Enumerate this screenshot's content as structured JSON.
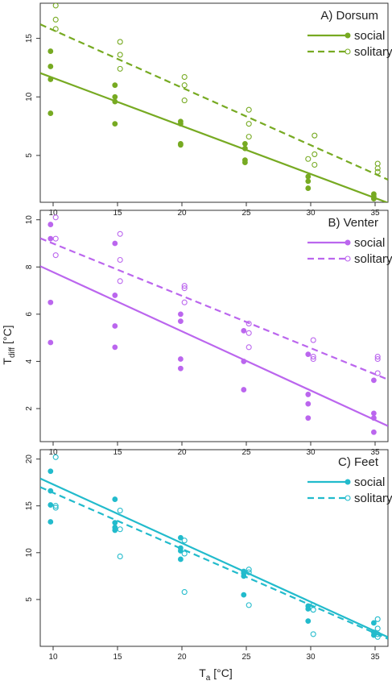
{
  "figure": {
    "xlabel": {
      "main": "T",
      "sub": "a",
      "unit": " [°C]"
    },
    "ylabel": {
      "main": "T",
      "sub": "diff",
      "unit": " [°C]"
    }
  },
  "chart_data": [
    {
      "type": "scatter",
      "title": "A) Dorsum",
      "xlim": [
        9,
        36
      ],
      "ylim": [
        1,
        18
      ],
      "x_ticks": [
        10,
        15,
        20,
        25,
        30,
        35
      ],
      "y_ticks": [
        5,
        10,
        15
      ],
      "color": "#77aa22",
      "legend_position": "top-right",
      "series": [
        {
          "name": "social",
          "marker": "filled",
          "line": "solid",
          "fit": {
            "intercept": 15.73,
            "slope": -0.4105
          },
          "points": [
            [
              9.8,
              13.9
            ],
            [
              9.8,
              12.6
            ],
            [
              9.8,
              11.5
            ],
            [
              9.8,
              8.6
            ],
            [
              14.8,
              11.0
            ],
            [
              14.8,
              10.0
            ],
            [
              14.8,
              9.6
            ],
            [
              14.8,
              7.7
            ],
            [
              19.9,
              7.9
            ],
            [
              19.9,
              7.7
            ],
            [
              19.9,
              6.0
            ],
            [
              19.9,
              5.9
            ],
            [
              24.9,
              6.0
            ],
            [
              24.9,
              5.6
            ],
            [
              24.9,
              4.6
            ],
            [
              24.9,
              4.4
            ],
            [
              29.8,
              3.2
            ],
            [
              29.8,
              2.8
            ],
            [
              29.8,
              2.2
            ],
            [
              34.9,
              1.7
            ],
            [
              34.9,
              1.5
            ],
            [
              34.9,
              1.3
            ]
          ]
        },
        {
          "name": "solitary",
          "marker": "open",
          "line": "dashed",
          "fit": {
            "intercept": 20.62,
            "slope": -0.4914
          },
          "points": [
            [
              10.2,
              17.8
            ],
            [
              10.2,
              16.6
            ],
            [
              10.2,
              15.8
            ],
            [
              15.2,
              14.7
            ],
            [
              15.2,
              13.6
            ],
            [
              15.2,
              12.4
            ],
            [
              20.2,
              11.7
            ],
            [
              20.2,
              11.0
            ],
            [
              20.2,
              9.7
            ],
            [
              25.2,
              8.9
            ],
            [
              25.2,
              7.7
            ],
            [
              25.2,
              6.6
            ],
            [
              29.8,
              4.7
            ],
            [
              30.3,
              6.7
            ],
            [
              30.3,
              5.1
            ],
            [
              30.3,
              4.2
            ],
            [
              35.2,
              4.3
            ],
            [
              35.2,
              3.9
            ],
            [
              35.2,
              3.6
            ]
          ]
        }
      ]
    },
    {
      "type": "scatter",
      "title": "B) Venter",
      "xlim": [
        9,
        36
      ],
      "ylim": [
        0.6,
        10.4
      ],
      "x_ticks": [
        10,
        15,
        20,
        25,
        30,
        35
      ],
      "y_ticks": [
        2,
        4,
        6,
        8,
        10
      ],
      "color": "#bb66ee",
      "legend_position": "top-right",
      "series": [
        {
          "name": "social",
          "marker": "filled",
          "line": "solid",
          "fit": {
            "intercept": 10.29,
            "slope": -0.2508
          },
          "points": [
            [
              9.8,
              9.8
            ],
            [
              9.8,
              9.2
            ],
            [
              9.8,
              6.5
            ],
            [
              9.8,
              4.8
            ],
            [
              14.8,
              9.0
            ],
            [
              14.8,
              6.8
            ],
            [
              14.8,
              5.5
            ],
            [
              14.8,
              4.6
            ],
            [
              19.9,
              6.0
            ],
            [
              19.9,
              5.7
            ],
            [
              19.9,
              4.1
            ],
            [
              19.9,
              3.7
            ],
            [
              24.8,
              5.3
            ],
            [
              24.8,
              4.0
            ],
            [
              24.8,
              2.8
            ],
            [
              29.8,
              4.3
            ],
            [
              29.8,
              2.6
            ],
            [
              29.8,
              2.2
            ],
            [
              29.8,
              1.6
            ],
            [
              34.9,
              3.2
            ],
            [
              34.9,
              1.8
            ],
            [
              34.9,
              1.6
            ],
            [
              34.9,
              1.0
            ]
          ]
        },
        {
          "name": "solitary",
          "marker": "open",
          "line": "dashed",
          "fit": {
            "intercept": 11.21,
            "slope": -0.2216
          },
          "points": [
            [
              10.2,
              10.1
            ],
            [
              10.2,
              9.2
            ],
            [
              10.2,
              8.5
            ],
            [
              15.2,
              9.4
            ],
            [
              15.2,
              8.3
            ],
            [
              15.2,
              7.4
            ],
            [
              20.2,
              7.2
            ],
            [
              20.2,
              7.1
            ],
            [
              20.2,
              6.5
            ],
            [
              25.2,
              5.6
            ],
            [
              25.2,
              5.2
            ],
            [
              25.2,
              4.6
            ],
            [
              30.2,
              4.9
            ],
            [
              30.2,
              4.2
            ],
            [
              30.2,
              4.1
            ],
            [
              35.2,
              4.2
            ],
            [
              35.2,
              4.1
            ],
            [
              35.2,
              3.5
            ]
          ]
        }
      ]
    },
    {
      "type": "scatter",
      "title": "C) Feet",
      "xlim": [
        9,
        36
      ],
      "ylim": [
        0,
        21
      ],
      "x_ticks": [
        10,
        15,
        20,
        25,
        30,
        35
      ],
      "y_ticks": [
        5,
        10,
        15,
        20
      ],
      "color": "#22bbcc",
      "legend_position": "top-right",
      "series": [
        {
          "name": "social",
          "marker": "filled",
          "line": "solid",
          "fit": {
            "intercept": 23.57,
            "slope": -0.6274
          },
          "points": [
            [
              9.8,
              18.7
            ],
            [
              9.8,
              16.6
            ],
            [
              9.8,
              15.1
            ],
            [
              9.8,
              13.3
            ],
            [
              14.8,
              15.7
            ],
            [
              14.8,
              13.2
            ],
            [
              14.8,
              12.7
            ],
            [
              14.8,
              12.4
            ],
            [
              19.9,
              11.6
            ],
            [
              19.9,
              10.5
            ],
            [
              19.9,
              10.2
            ],
            [
              19.9,
              9.3
            ],
            [
              24.8,
              8.0
            ],
            [
              24.8,
              7.8
            ],
            [
              24.8,
              7.5
            ],
            [
              24.8,
              5.5
            ],
            [
              29.8,
              4.3
            ],
            [
              29.8,
              4.0
            ],
            [
              29.8,
              2.7
            ],
            [
              34.9,
              2.5
            ],
            [
              34.9,
              1.5
            ],
            [
              34.9,
              1.2
            ]
          ]
        },
        {
          "name": "solitary",
          "marker": "open",
          "line": "dashed",
          "fit": {
            "intercept": 22.4,
            "slope": -0.6
          },
          "points": [
            [
              10.2,
              20.2
            ],
            [
              10.2,
              15.0
            ],
            [
              10.2,
              14.8
            ],
            [
              15.2,
              14.5
            ],
            [
              15.2,
              12.5
            ],
            [
              15.2,
              9.6
            ],
            [
              20.2,
              11.3
            ],
            [
              20.2,
              9.9
            ],
            [
              20.2,
              5.8
            ],
            [
              25.2,
              8.2
            ],
            [
              25.2,
              7.9
            ],
            [
              25.2,
              4.4
            ],
            [
              30.2,
              4.4
            ],
            [
              30.2,
              3.9
            ],
            [
              30.2,
              1.3
            ],
            [
              35.2,
              2.9
            ],
            [
              35.2,
              1.9
            ],
            [
              35.2,
              1.3
            ],
            [
              35.2,
              1.0
            ]
          ]
        }
      ]
    }
  ]
}
